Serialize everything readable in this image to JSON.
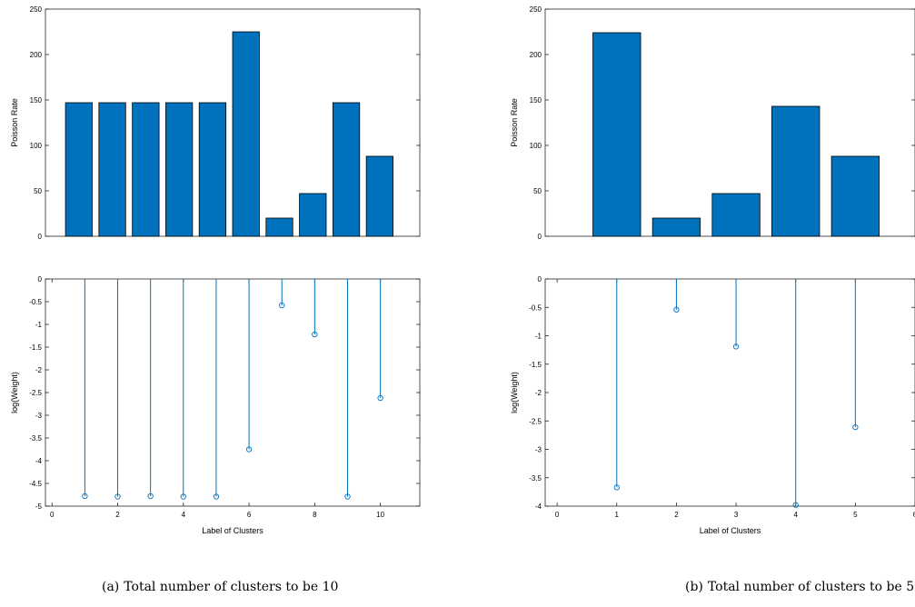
{
  "chart_data": [
    {
      "type": "bar",
      "panel": "a-top",
      "ylabel": "Poisson Rate",
      "xlabel": "",
      "categories": [
        1,
        2,
        3,
        4,
        5,
        6,
        7,
        8,
        9,
        10
      ],
      "values": [
        147,
        147,
        147,
        147,
        147,
        225,
        20,
        47,
        147,
        88
      ],
      "xlim": [
        0,
        11.2
      ],
      "ylim": [
        0,
        250
      ],
      "yticks": [
        0,
        50,
        100,
        150,
        200,
        250
      ],
      "color": "#0072BD",
      "edge_color": "#000000"
    },
    {
      "type": "stem",
      "panel": "a-bottom",
      "ylabel": "log(Weight)",
      "xlabel": "Label of Clusters",
      "x": [
        1,
        2,
        3,
        4,
        5,
        6,
        7,
        8,
        9,
        10
      ],
      "y": [
        -4.78,
        -4.79,
        -4.78,
        -4.79,
        -4.79,
        -3.75,
        -0.58,
        -1.22,
        -4.79,
        -2.62
      ],
      "xlim": [
        -0.2,
        11.2
      ],
      "ylim": [
        -5,
        0
      ],
      "xticks": [
        0,
        2,
        4,
        6,
        8,
        10
      ],
      "yticks": [
        0,
        -0.5,
        -1,
        -1.5,
        -2,
        -2.5,
        -3,
        -3.5,
        -4,
        -4.5,
        -5
      ],
      "color": "#0072BD"
    },
    {
      "type": "bar",
      "panel": "b-top",
      "ylabel": "Poisson Rate",
      "xlabel": "",
      "categories": [
        1,
        2,
        3,
        4,
        5
      ],
      "values": [
        224,
        20,
        47,
        143,
        88
      ],
      "xlim": [
        -0.2,
        6
      ],
      "ylim": [
        0,
        250
      ],
      "yticks": [
        0,
        50,
        100,
        150,
        200,
        250
      ],
      "color": "#0072BD",
      "edge_color": "#000000"
    },
    {
      "type": "stem",
      "panel": "b-bottom",
      "ylabel": "log(Weight)",
      "xlabel": "Label of Clusters",
      "x": [
        1,
        2,
        3,
        4,
        5
      ],
      "y": [
        -3.67,
        -0.54,
        -1.19,
        -3.98,
        -2.61
      ],
      "xlim": [
        -0.2,
        6
      ],
      "ylim": [
        -4,
        0
      ],
      "xticks": [
        0,
        1,
        2,
        3,
        4,
        5,
        6
      ],
      "yticks": [
        0,
        -0.5,
        -1,
        -1.5,
        -2,
        -2.5,
        -3,
        -3.5,
        -4
      ],
      "color": "#0072BD"
    }
  ],
  "captions": {
    "a": {
      "label": "(a)",
      "text": "Total number of clusters to be 10"
    },
    "b": {
      "label": "(b)",
      "text": "Total number of clusters to be 5"
    }
  }
}
